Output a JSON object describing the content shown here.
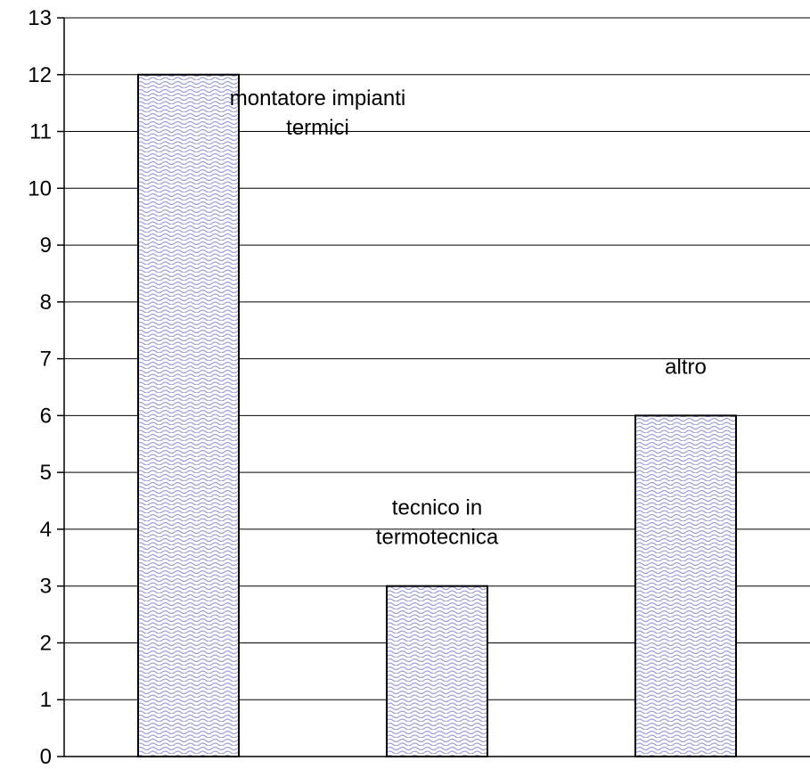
{
  "chart_data": {
    "type": "bar",
    "categories": [
      "montatore impianti termici",
      "tecnico in termotecnica",
      "altro"
    ],
    "values": [
      12,
      3,
      6
    ],
    "data_labels": [
      [
        "montatore impianti",
        "termici"
      ],
      [
        "tecnico in",
        "termotecnica"
      ],
      [
        "altro"
      ]
    ],
    "title": "",
    "xlabel": "",
    "ylabel": "",
    "ylim": [
      0,
      13
    ],
    "yticks": [
      "0",
      "1",
      "2",
      "3",
      "4",
      "5",
      "6",
      "7",
      "8",
      "9",
      "10",
      "11",
      "12",
      "13"
    ],
    "grid": true,
    "legend": "none",
    "colors": {
      "bar_fill": "#ffffff",
      "bar_pattern": "#9f9fe8",
      "bar_outline": "#000000",
      "grid": "#000000"
    }
  }
}
